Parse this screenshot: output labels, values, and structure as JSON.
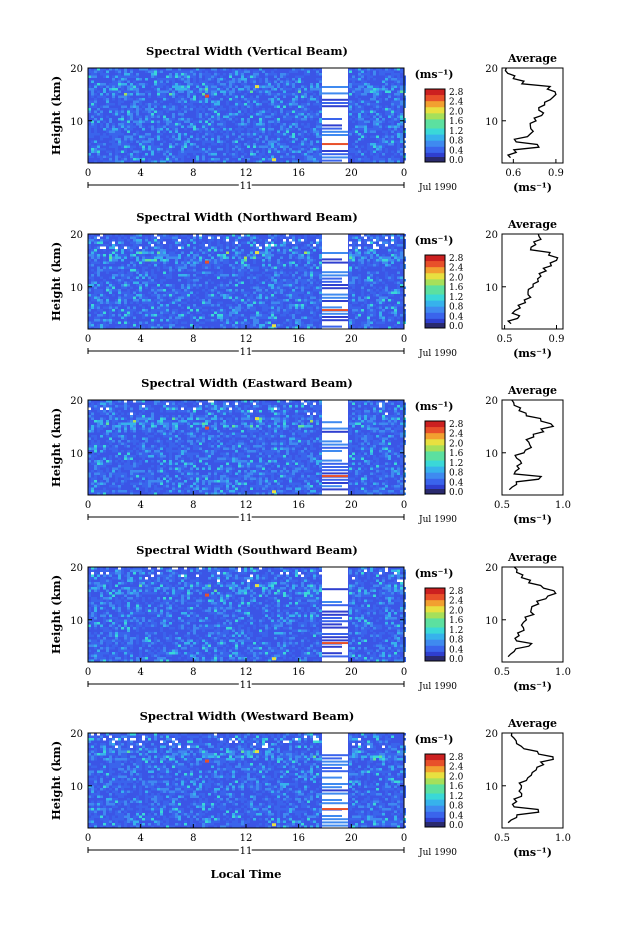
{
  "figure": {
    "xlabel": "Local Time",
    "date_label": "Jul 1990",
    "day_label": "11",
    "ylabel": "Height (km)",
    "unit_label": "(ms⁻¹)",
    "avg_title": "Average"
  },
  "colors": {
    "scale": [
      "#2a2a6e",
      "#2f3fcf",
      "#3a64ec",
      "#3f8af0",
      "#37b2ec",
      "#3ad8d8",
      "#5ce0a0",
      "#a6e05a",
      "#e8e040",
      "#f2a030",
      "#e8502a",
      "#cc2020"
    ],
    "background": "#3b55e6",
    "missing": "#ffffff"
  },
  "chart_data": [
    {
      "type": "heatmap",
      "title": "Spectral Width (Vertical Beam)",
      "x_ticks": [
        "0",
        "4",
        "8",
        "12",
        "16",
        "20",
        "0"
      ],
      "y_ticks": [
        "20",
        "10"
      ],
      "xlim": [
        0,
        24
      ],
      "ylim": [
        2,
        20
      ],
      "colorbar_ticks": [
        "2.8",
        "2.4",
        "2.0",
        "1.6",
        "1.2",
        "0.8",
        "0.4",
        "0.0"
      ],
      "average_profile": {
        "title": "Average",
        "xlabel": "(ms⁻¹)",
        "x_ticks": [
          "0.6",
          "0.9"
        ],
        "xlim": [
          0.52,
          0.95
        ],
        "y_ticks": [
          "20",
          "10"
        ],
        "heights": [
          3,
          4,
          5,
          6,
          7,
          8,
          9,
          10,
          11,
          12,
          13,
          14,
          15,
          16,
          17,
          18,
          19,
          20
        ],
        "values": [
          0.58,
          0.62,
          0.78,
          0.62,
          0.7,
          0.74,
          0.72,
          0.76,
          0.8,
          0.78,
          0.82,
          0.86,
          0.9,
          0.84,
          0.66,
          0.6,
          0.56,
          0.55
        ]
      }
    },
    {
      "type": "heatmap",
      "title": "Spectral Width (Northward Beam)",
      "x_ticks": [
        "0",
        "4",
        "8",
        "12",
        "16",
        "20",
        "0"
      ],
      "y_ticks": [
        "20",
        "10"
      ],
      "xlim": [
        0,
        24
      ],
      "ylim": [
        2,
        20
      ],
      "colorbar_ticks": [
        "2.8",
        "2.4",
        "2.0",
        "1.6",
        "1.2",
        "0.8",
        "0.4",
        "0.0"
      ],
      "average_profile": {
        "title": "Average",
        "xlabel": "(ms⁻¹)",
        "x_ticks": [
          "0.5",
          "0.9"
        ],
        "xlim": [
          0.48,
          0.95
        ],
        "y_ticks": [
          "20",
          "10"
        ],
        "heights": [
          3,
          4,
          5,
          6,
          7,
          8,
          9,
          10,
          11,
          12,
          13,
          14,
          15,
          16,
          17,
          18,
          19,
          20
        ],
        "values": [
          0.55,
          0.6,
          0.56,
          0.62,
          0.66,
          0.7,
          0.68,
          0.72,
          0.76,
          0.78,
          0.82,
          0.86,
          0.9,
          0.84,
          0.7,
          0.74,
          0.78,
          0.76
        ]
      }
    },
    {
      "type": "heatmap",
      "title": "Spectral Width (Eastward Beam)",
      "x_ticks": [
        "0",
        "4",
        "8",
        "12",
        "16",
        "20",
        "0"
      ],
      "y_ticks": [
        "20",
        "10"
      ],
      "xlim": [
        0,
        24
      ],
      "ylim": [
        2,
        20
      ],
      "colorbar_ticks": [
        "2.8",
        "2.4",
        "2.0",
        "1.6",
        "1.2",
        "0.8",
        "0.4",
        "0.0"
      ],
      "average_profile": {
        "title": "Average",
        "xlabel": "(ms⁻¹)",
        "x_ticks": [
          "0.5",
          "1.0"
        ],
        "xlim": [
          0.5,
          1.0
        ],
        "y_ticks": [
          "20",
          "10"
        ],
        "heights": [
          3,
          4,
          5,
          6,
          7,
          8,
          9,
          10,
          11,
          12,
          13,
          14,
          15,
          16,
          17,
          18,
          19,
          20
        ],
        "values": [
          0.56,
          0.62,
          0.8,
          0.6,
          0.64,
          0.66,
          0.62,
          0.68,
          0.74,
          0.72,
          0.76,
          0.84,
          0.92,
          0.82,
          0.7,
          0.64,
          0.6,
          0.58
        ]
      }
    },
    {
      "type": "heatmap",
      "title": "Spectral Width (Southward Beam)",
      "x_ticks": [
        "0",
        "4",
        "8",
        "12",
        "16",
        "20",
        "0"
      ],
      "y_ticks": [
        "20",
        "10"
      ],
      "xlim": [
        0,
        24
      ],
      "ylim": [
        2,
        20
      ],
      "colorbar_ticks": [
        "2.8",
        "2.4",
        "2.0",
        "1.6",
        "1.2",
        "0.8",
        "0.4",
        "0.0"
      ],
      "average_profile": {
        "title": "Average",
        "xlabel": "(ms⁻¹)",
        "x_ticks": [
          "0.5",
          "1.0"
        ],
        "xlim": [
          0.5,
          1.0
        ],
        "y_ticks": [
          "20",
          "10"
        ],
        "heights": [
          3,
          4,
          5,
          6,
          7,
          8,
          9,
          10,
          11,
          12,
          13,
          14,
          15,
          16,
          17,
          18,
          19,
          20
        ],
        "values": [
          0.55,
          0.6,
          0.72,
          0.62,
          0.64,
          0.68,
          0.66,
          0.7,
          0.76,
          0.74,
          0.8,
          0.86,
          0.94,
          0.84,
          0.72,
          0.66,
          0.62,
          0.6
        ]
      }
    },
    {
      "type": "heatmap",
      "title": "Spectral Width (Westward Beam)",
      "x_ticks": [
        "0",
        "4",
        "8",
        "12",
        "16",
        "20",
        "0"
      ],
      "y_ticks": [
        "20",
        "10"
      ],
      "xlim": [
        0,
        24
      ],
      "ylim": [
        2,
        20
      ],
      "colorbar_ticks": [
        "2.8",
        "2.4",
        "2.0",
        "1.6",
        "1.2",
        "0.8",
        "0.4",
        "0.0"
      ],
      "average_profile": {
        "title": "Average",
        "xlabel": "(ms⁻¹)",
        "x_ticks": [
          "0.5",
          "1.0"
        ],
        "xlim": [
          0.5,
          1.0
        ],
        "y_ticks": [
          "20",
          "10"
        ],
        "heights": [
          3,
          4,
          5,
          6,
          7,
          8,
          9,
          10,
          11,
          12,
          13,
          14,
          15,
          16,
          17,
          18,
          19,
          20
        ],
        "values": [
          0.55,
          0.62,
          0.8,
          0.6,
          0.62,
          0.66,
          0.64,
          0.66,
          0.7,
          0.74,
          0.78,
          0.84,
          0.92,
          0.8,
          0.68,
          0.62,
          0.6,
          0.58
        ]
      }
    }
  ]
}
